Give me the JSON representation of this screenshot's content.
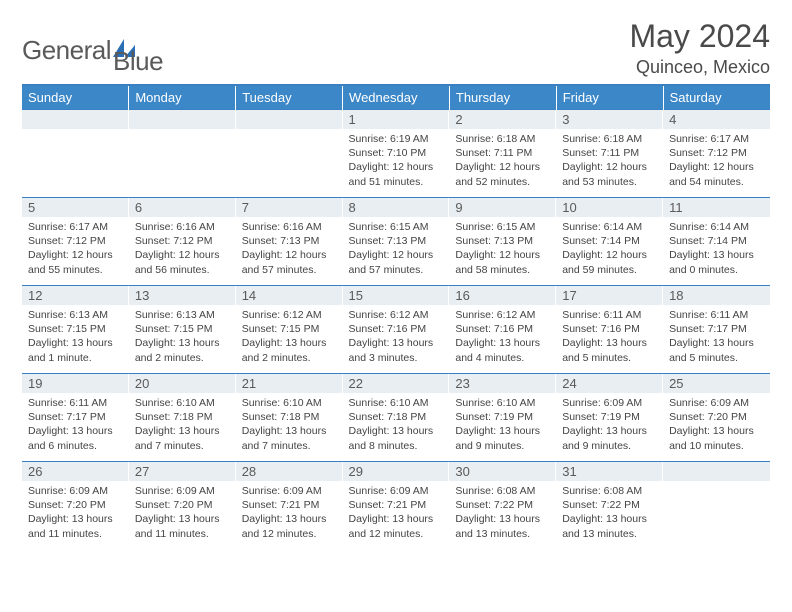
{
  "logo": {
    "textA": "General",
    "textB": "Blue"
  },
  "title": "May 2024",
  "location": "Quinceo, Mexico",
  "colors": {
    "header_bg": "#3b87c8",
    "divider": "#3b7fc4",
    "daynum_bg": "#e9eef2",
    "text": "#444444",
    "logo_blue": "#2a6fb5"
  },
  "weekdays": [
    "Sunday",
    "Monday",
    "Tuesday",
    "Wednesday",
    "Thursday",
    "Friday",
    "Saturday"
  ],
  "weeks": [
    [
      {
        "n": "",
        "sr": "",
        "ss": "",
        "dl": ""
      },
      {
        "n": "",
        "sr": "",
        "ss": "",
        "dl": ""
      },
      {
        "n": "",
        "sr": "",
        "ss": "",
        "dl": ""
      },
      {
        "n": "1",
        "sr": "Sunrise: 6:19 AM",
        "ss": "Sunset: 7:10 PM",
        "dl": "Daylight: 12 hours and 51 minutes."
      },
      {
        "n": "2",
        "sr": "Sunrise: 6:18 AM",
        "ss": "Sunset: 7:11 PM",
        "dl": "Daylight: 12 hours and 52 minutes."
      },
      {
        "n": "3",
        "sr": "Sunrise: 6:18 AM",
        "ss": "Sunset: 7:11 PM",
        "dl": "Daylight: 12 hours and 53 minutes."
      },
      {
        "n": "4",
        "sr": "Sunrise: 6:17 AM",
        "ss": "Sunset: 7:12 PM",
        "dl": "Daylight: 12 hours and 54 minutes."
      }
    ],
    [
      {
        "n": "5",
        "sr": "Sunrise: 6:17 AM",
        "ss": "Sunset: 7:12 PM",
        "dl": "Daylight: 12 hours and 55 minutes."
      },
      {
        "n": "6",
        "sr": "Sunrise: 6:16 AM",
        "ss": "Sunset: 7:12 PM",
        "dl": "Daylight: 12 hours and 56 minutes."
      },
      {
        "n": "7",
        "sr": "Sunrise: 6:16 AM",
        "ss": "Sunset: 7:13 PM",
        "dl": "Daylight: 12 hours and 57 minutes."
      },
      {
        "n": "8",
        "sr": "Sunrise: 6:15 AM",
        "ss": "Sunset: 7:13 PM",
        "dl": "Daylight: 12 hours and 57 minutes."
      },
      {
        "n": "9",
        "sr": "Sunrise: 6:15 AM",
        "ss": "Sunset: 7:13 PM",
        "dl": "Daylight: 12 hours and 58 minutes."
      },
      {
        "n": "10",
        "sr": "Sunrise: 6:14 AM",
        "ss": "Sunset: 7:14 PM",
        "dl": "Daylight: 12 hours and 59 minutes."
      },
      {
        "n": "11",
        "sr": "Sunrise: 6:14 AM",
        "ss": "Sunset: 7:14 PM",
        "dl": "Daylight: 13 hours and 0 minutes."
      }
    ],
    [
      {
        "n": "12",
        "sr": "Sunrise: 6:13 AM",
        "ss": "Sunset: 7:15 PM",
        "dl": "Daylight: 13 hours and 1 minute."
      },
      {
        "n": "13",
        "sr": "Sunrise: 6:13 AM",
        "ss": "Sunset: 7:15 PM",
        "dl": "Daylight: 13 hours and 2 minutes."
      },
      {
        "n": "14",
        "sr": "Sunrise: 6:12 AM",
        "ss": "Sunset: 7:15 PM",
        "dl": "Daylight: 13 hours and 2 minutes."
      },
      {
        "n": "15",
        "sr": "Sunrise: 6:12 AM",
        "ss": "Sunset: 7:16 PM",
        "dl": "Daylight: 13 hours and 3 minutes."
      },
      {
        "n": "16",
        "sr": "Sunrise: 6:12 AM",
        "ss": "Sunset: 7:16 PM",
        "dl": "Daylight: 13 hours and 4 minutes."
      },
      {
        "n": "17",
        "sr": "Sunrise: 6:11 AM",
        "ss": "Sunset: 7:16 PM",
        "dl": "Daylight: 13 hours and 5 minutes."
      },
      {
        "n": "18",
        "sr": "Sunrise: 6:11 AM",
        "ss": "Sunset: 7:17 PM",
        "dl": "Daylight: 13 hours and 5 minutes."
      }
    ],
    [
      {
        "n": "19",
        "sr": "Sunrise: 6:11 AM",
        "ss": "Sunset: 7:17 PM",
        "dl": "Daylight: 13 hours and 6 minutes."
      },
      {
        "n": "20",
        "sr": "Sunrise: 6:10 AM",
        "ss": "Sunset: 7:18 PM",
        "dl": "Daylight: 13 hours and 7 minutes."
      },
      {
        "n": "21",
        "sr": "Sunrise: 6:10 AM",
        "ss": "Sunset: 7:18 PM",
        "dl": "Daylight: 13 hours and 7 minutes."
      },
      {
        "n": "22",
        "sr": "Sunrise: 6:10 AM",
        "ss": "Sunset: 7:18 PM",
        "dl": "Daylight: 13 hours and 8 minutes."
      },
      {
        "n": "23",
        "sr": "Sunrise: 6:10 AM",
        "ss": "Sunset: 7:19 PM",
        "dl": "Daylight: 13 hours and 9 minutes."
      },
      {
        "n": "24",
        "sr": "Sunrise: 6:09 AM",
        "ss": "Sunset: 7:19 PM",
        "dl": "Daylight: 13 hours and 9 minutes."
      },
      {
        "n": "25",
        "sr": "Sunrise: 6:09 AM",
        "ss": "Sunset: 7:20 PM",
        "dl": "Daylight: 13 hours and 10 minutes."
      }
    ],
    [
      {
        "n": "26",
        "sr": "Sunrise: 6:09 AM",
        "ss": "Sunset: 7:20 PM",
        "dl": "Daylight: 13 hours and 11 minutes."
      },
      {
        "n": "27",
        "sr": "Sunrise: 6:09 AM",
        "ss": "Sunset: 7:20 PM",
        "dl": "Daylight: 13 hours and 11 minutes."
      },
      {
        "n": "28",
        "sr": "Sunrise: 6:09 AM",
        "ss": "Sunset: 7:21 PM",
        "dl": "Daylight: 13 hours and 12 minutes."
      },
      {
        "n": "29",
        "sr": "Sunrise: 6:09 AM",
        "ss": "Sunset: 7:21 PM",
        "dl": "Daylight: 13 hours and 12 minutes."
      },
      {
        "n": "30",
        "sr": "Sunrise: 6:08 AM",
        "ss": "Sunset: 7:22 PM",
        "dl": "Daylight: 13 hours and 13 minutes."
      },
      {
        "n": "31",
        "sr": "Sunrise: 6:08 AM",
        "ss": "Sunset: 7:22 PM",
        "dl": "Daylight: 13 hours and 13 minutes."
      },
      {
        "n": "",
        "sr": "",
        "ss": "",
        "dl": ""
      }
    ]
  ]
}
